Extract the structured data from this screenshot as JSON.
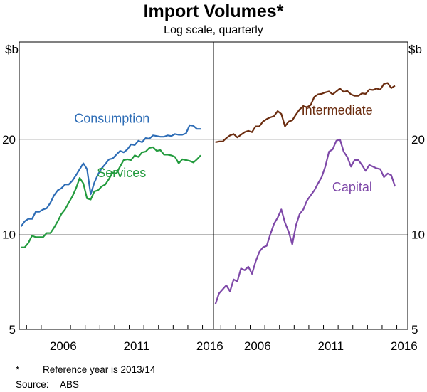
{
  "title": "Import Volumes*",
  "subtitle": "Log scale, quarterly",
  "notes": {
    "footnote_symbol": "*",
    "footnote_text": "Reference year is 2013/14",
    "source_label": "Source:",
    "source_text": "ABS"
  },
  "chart_data": {
    "type": "line",
    "scale": "log",
    "unit": "$b",
    "ylim": [
      5,
      40
    ],
    "yticks": [
      5,
      10,
      20
    ],
    "xlim": [
      2003.5,
      2016.75
    ],
    "xticks": [
      2006,
      2011,
      2016
    ],
    "grid": true,
    "colors": {
      "consumption": "#2e6db6",
      "services": "#239b3e",
      "intermediate": "#6b2d10",
      "capital": "#7e48a8",
      "grid": "#b8b8b8"
    },
    "panels": [
      {
        "series": [
          {
            "name": "Consumption",
            "color_key": "consumption",
            "label_x": 2007.25,
            "label_y": 22.6,
            "x": [
              2003.625,
              2003.875,
              2004.125,
              2004.375,
              2004.625,
              2004.875,
              2005.125,
              2005.375,
              2005.625,
              2005.875,
              2006.125,
              2006.375,
              2006.625,
              2006.875,
              2007.125,
              2007.375,
              2007.625,
              2007.875,
              2008.125,
              2008.375,
              2008.625,
              2008.875,
              2009.125,
              2009.375,
              2009.625,
              2009.875,
              2010.125,
              2010.375,
              2010.625,
              2010.875,
              2011.125,
              2011.375,
              2011.625,
              2011.875,
              2012.125,
              2012.375,
              2012.625,
              2012.875,
              2013.125,
              2013.375,
              2013.625,
              2013.875,
              2014.125,
              2014.375,
              2014.625,
              2014.875,
              2015.125,
              2015.375,
              2015.625,
              2015.875
            ],
            "values": [
              10.6,
              11,
              11.2,
              11.2,
              11.8,
              11.8,
              12,
              12.1,
              12.6,
              13.3,
              13.8,
              14,
              14.4,
              14.4,
              14.8,
              15.4,
              16.1,
              16.8,
              16.1,
              13.4,
              14.6,
              15.5,
              16.2,
              16.7,
              17.3,
              17.4,
              17.9,
              18.4,
              18.2,
              18.6,
              19.3,
              19.2,
              19.8,
              19.6,
              20.2,
              20.1,
              20.6,
              20.5,
              20.4,
              20.4,
              20.6,
              20.5,
              20.8,
              20.7,
              20.7,
              20.9,
              22.2,
              22.1,
              21.6,
              21.6
            ]
          },
          {
            "name": "Services",
            "color_key": "services",
            "label_x": 2008.8,
            "label_y": 15.2,
            "x": [
              2003.625,
              2003.875,
              2004.125,
              2004.375,
              2004.625,
              2004.875,
              2005.125,
              2005.375,
              2005.625,
              2005.875,
              2006.125,
              2006.375,
              2006.625,
              2006.875,
              2007.125,
              2007.375,
              2007.625,
              2007.875,
              2008.125,
              2008.375,
              2008.625,
              2008.875,
              2009.125,
              2009.375,
              2009.625,
              2009.875,
              2010.125,
              2010.375,
              2010.625,
              2010.875,
              2011.125,
              2011.375,
              2011.625,
              2011.875,
              2012.125,
              2012.375,
              2012.625,
              2012.875,
              2013.125,
              2013.375,
              2013.625,
              2013.875,
              2014.125,
              2014.375,
              2014.625,
              2014.875,
              2015.125,
              2015.375,
              2015.625,
              2015.875
            ],
            "values": [
              9.1,
              9.1,
              9.4,
              9.9,
              9.8,
              9.8,
              9.8,
              10.1,
              10.1,
              10.5,
              11,
              11.6,
              12,
              12.6,
              13.2,
              14,
              15.1,
              14.5,
              13,
              12.9,
              13.7,
              13.8,
              14.2,
              14.4,
              15,
              15.7,
              15.6,
              16.4,
              17.2,
              17.3,
              17.2,
              17.8,
              17.6,
              18.2,
              18.3,
              18.8,
              18.9,
              18.4,
              18.5,
              17.9,
              17.9,
              17.8,
              17.6,
              16.8,
              17.3,
              17.2,
              17.1,
              16.9,
              17.3,
              17.8
            ]
          }
        ]
      },
      {
        "series": [
          {
            "name": "Intermediate",
            "color_key": "intermediate",
            "label_x": 2009.5,
            "label_y": 24.0,
            "x": [
              2003.625,
              2003.875,
              2004.125,
              2004.375,
              2004.625,
              2004.875,
              2005.125,
              2005.375,
              2005.625,
              2005.875,
              2006.125,
              2006.375,
              2006.625,
              2006.875,
              2007.125,
              2007.375,
              2007.625,
              2007.875,
              2008.125,
              2008.375,
              2008.625,
              2008.875,
              2009.125,
              2009.375,
              2009.625,
              2009.875,
              2010.125,
              2010.375,
              2010.625,
              2010.875,
              2011.125,
              2011.375,
              2011.625,
              2011.875,
              2012.125,
              2012.375,
              2012.625,
              2012.875,
              2013.125,
              2013.375,
              2013.625,
              2013.875,
              2014.125,
              2014.375,
              2014.625,
              2014.875,
              2015.125,
              2015.375,
              2015.625,
              2015.875
            ],
            "values": [
              19.6,
              19.7,
              19.7,
              20.2,
              20.6,
              20.8,
              20.3,
              20.7,
              21.1,
              21.3,
              21.1,
              22,
              22,
              22.8,
              23.2,
              23.5,
              23.7,
              24.6,
              24.1,
              22,
              22.8,
              23,
              24,
              24.9,
              25.5,
              25.3,
              25.7,
              27.3,
              27.8,
              27.9,
              28.2,
              28.4,
              27.8,
              28.4,
              29,
              28.3,
              28.5,
              27.8,
              27.5,
              27.5,
              28,
              27.9,
              28.8,
              28.7,
              29,
              28.8,
              30,
              30.2,
              29.1,
              29.6
            ]
          },
          {
            "name": "Capital",
            "color_key": "capital",
            "label_x": 2011.6,
            "label_y": 13.7,
            "x": [
              2003.625,
              2003.875,
              2004.125,
              2004.375,
              2004.625,
              2004.875,
              2005.125,
              2005.375,
              2005.625,
              2005.875,
              2006.125,
              2006.375,
              2006.625,
              2006.875,
              2007.125,
              2007.375,
              2007.625,
              2007.875,
              2008.125,
              2008.375,
              2008.625,
              2008.875,
              2009.125,
              2009.375,
              2009.625,
              2009.875,
              2010.125,
              2010.375,
              2010.625,
              2010.875,
              2011.125,
              2011.375,
              2011.625,
              2011.875,
              2012.125,
              2012.375,
              2012.625,
              2012.875,
              2013.125,
              2013.375,
              2013.625,
              2013.875,
              2014.125,
              2014.375,
              2014.625,
              2014.875,
              2015.125,
              2015.375,
              2015.625,
              2015.875
            ],
            "values": [
              6,
              6.5,
              6.7,
              6.9,
              6.6,
              7.2,
              7.1,
              7.8,
              7.7,
              7.9,
              7.5,
              8.2,
              8.8,
              9.1,
              9.2,
              10,
              10.8,
              11.3,
              12,
              10.9,
              10.2,
              9.3,
              10.7,
              11.6,
              12,
              12.8,
              13.3,
              13.8,
              14.5,
              15.2,
              16.4,
              18.3,
              18.6,
              19.8,
              20,
              18.3,
              17.6,
              16.4,
              17.2,
              17.2,
              16.6,
              15.9,
              16.6,
              16.4,
              16.2,
              16.1,
              15.2,
              15.6,
              15.4,
              14.2
            ]
          }
        ]
      }
    ]
  }
}
